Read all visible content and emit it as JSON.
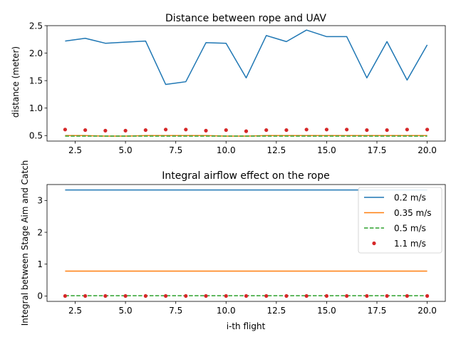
{
  "chart_data": [
    {
      "type": "line",
      "title": "Distance between rope and UAV",
      "xlabel": "",
      "ylabel": "distance (meter)",
      "xlim": [
        1.1,
        20.9
      ],
      "ylim": [
        0.4,
        2.5
      ],
      "xticks": [
        2.5,
        5.0,
        7.5,
        10.0,
        12.5,
        15.0,
        17.5,
        20.0
      ],
      "xtick_labels": [
        "2.5",
        "5.0",
        "7.5",
        "10.0",
        "12.5",
        "15.0",
        "17.5",
        "20.0"
      ],
      "yticks": [
        0.5,
        1.0,
        1.5,
        2.0,
        2.5
      ],
      "ytick_labels": [
        "0.5",
        "1.0",
        "1.5",
        "2.0",
        "2.5"
      ],
      "x": [
        2,
        3,
        4,
        5,
        6,
        7,
        8,
        9,
        10,
        11,
        12,
        13,
        14,
        15,
        16,
        17,
        18,
        19,
        20
      ],
      "series": [
        {
          "name": "0.2 m/s",
          "style": "solid",
          "color": "#1f77b4",
          "values": [
            2.22,
            2.27,
            2.18,
            2.2,
            2.22,
            1.43,
            1.48,
            2.19,
            2.18,
            1.55,
            2.32,
            2.21,
            2.42,
            2.3,
            2.3,
            1.55,
            2.21,
            1.51,
            2.15
          ]
        },
        {
          "name": "0.35 m/s",
          "style": "solid",
          "color": "#ff7f0e",
          "values": [
            0.5,
            0.5,
            0.49,
            0.49,
            0.5,
            0.5,
            0.5,
            0.5,
            0.49,
            0.49,
            0.5,
            0.5,
            0.5,
            0.5,
            0.5,
            0.5,
            0.5,
            0.5,
            0.5
          ]
        },
        {
          "name": "0.5 m/s",
          "style": "dashed",
          "color": "#2ca02c",
          "values": [
            0.49,
            0.49,
            0.49,
            0.49,
            0.49,
            0.49,
            0.49,
            0.49,
            0.49,
            0.49,
            0.49,
            0.49,
            0.49,
            0.49,
            0.49,
            0.49,
            0.49,
            0.49,
            0.49
          ]
        },
        {
          "name": "1.1 m/s",
          "style": "dots",
          "color": "#d62728",
          "values": [
            0.61,
            0.6,
            0.59,
            0.59,
            0.6,
            0.61,
            0.61,
            0.59,
            0.6,
            0.58,
            0.6,
            0.6,
            0.61,
            0.61,
            0.61,
            0.6,
            0.6,
            0.61,
            0.61
          ]
        }
      ]
    },
    {
      "type": "line",
      "title": "Integral airflow effect on the rope",
      "xlabel": "i-th flight",
      "ylabel": "Integral between Stage Aim and Catch",
      "xlim": [
        1.1,
        20.9
      ],
      "ylim": [
        -0.17,
        3.5
      ],
      "xticks": [
        2.5,
        5.0,
        7.5,
        10.0,
        12.5,
        15.0,
        17.5,
        20.0
      ],
      "xtick_labels": [
        "2.5",
        "5.0",
        "7.5",
        "10.0",
        "12.5",
        "15.0",
        "17.5",
        "20.0"
      ],
      "yticks": [
        0,
        1,
        2,
        3
      ],
      "ytick_labels": [
        "0",
        "1",
        "2",
        "3"
      ],
      "legend_position": "top-right",
      "x": [
        2,
        3,
        4,
        5,
        6,
        7,
        8,
        9,
        10,
        11,
        12,
        13,
        14,
        15,
        16,
        17,
        18,
        19,
        20
      ],
      "series": [
        {
          "name": "0.2 m/s",
          "style": "solid",
          "color": "#1f77b4",
          "values": [
            3.33,
            3.33,
            3.33,
            3.33,
            3.33,
            3.33,
            3.33,
            3.33,
            3.33,
            3.33,
            3.33,
            3.33,
            3.33,
            3.33,
            3.33,
            3.33,
            3.33,
            3.33,
            3.33
          ]
        },
        {
          "name": "0.35 m/s",
          "style": "solid",
          "color": "#ff7f0e",
          "values": [
            0.78,
            0.78,
            0.78,
            0.78,
            0.78,
            0.78,
            0.78,
            0.78,
            0.78,
            0.78,
            0.78,
            0.78,
            0.78,
            0.78,
            0.78,
            0.78,
            0.78,
            0.78,
            0.78
          ]
        },
        {
          "name": "0.5 m/s",
          "style": "dashed",
          "color": "#2ca02c",
          "values": [
            0.01,
            0.01,
            0.01,
            0.01,
            0.01,
            0.01,
            0.01,
            0.01,
            0.01,
            0.01,
            0.01,
            0.01,
            0.01,
            0.01,
            0.01,
            0.01,
            0.01,
            0.01,
            0.01
          ]
        },
        {
          "name": "1.1 m/s",
          "style": "dots",
          "color": "#d62728",
          "values": [
            0.0,
            0.0,
            0.0,
            0.0,
            0.0,
            0.0,
            0.0,
            0.0,
            0.0,
            0.0,
            0.0,
            0.0,
            0.0,
            0.0,
            0.0,
            0.0,
            0.0,
            0.0,
            0.0
          ]
        }
      ]
    }
  ]
}
